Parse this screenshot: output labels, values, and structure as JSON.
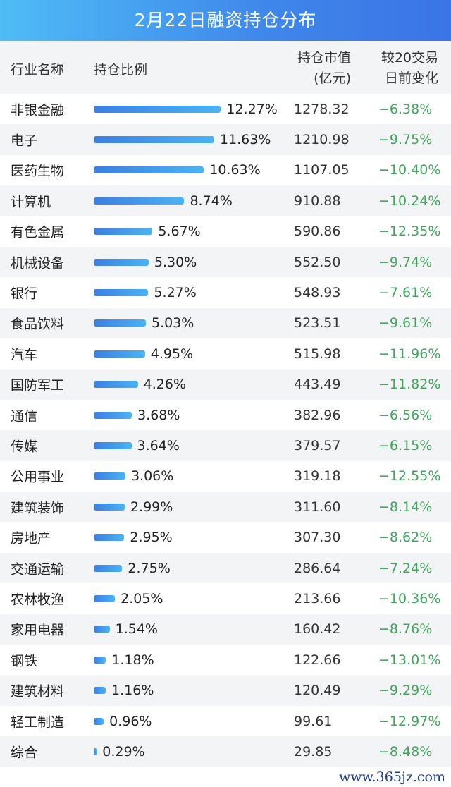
{
  "title": "2月22日融资持仓分布",
  "headers": {
    "name": "行业名称",
    "ratio": "持仓比例",
    "value_l1": "持仓市值",
    "value_l2": "(亿元)",
    "change_l1": "较20交易",
    "change_l2": "日前变化"
  },
  "colors": {
    "bar": "#3b7fe2",
    "change": "#3fa65c"
  },
  "rows": [
    {
      "name": "非银金融",
      "ratio": 12.27,
      "ratio_label": "12.27%",
      "value": "1278.32",
      "change": "−6.38%"
    },
    {
      "name": "电子",
      "ratio": 11.63,
      "ratio_label": "11.63%",
      "value": "1210.98",
      "change": "−9.75%"
    },
    {
      "name": "医药生物",
      "ratio": 10.63,
      "ratio_label": "10.63%",
      "value": "1107.05",
      "change": "−10.40%"
    },
    {
      "name": "计算机",
      "ratio": 8.74,
      "ratio_label": "8.74%",
      "value": "910.88",
      "change": "−10.24%"
    },
    {
      "name": "有色金属",
      "ratio": 5.67,
      "ratio_label": "5.67%",
      "value": "590.86",
      "change": "−12.35%"
    },
    {
      "name": "机械设备",
      "ratio": 5.3,
      "ratio_label": "5.30%",
      "value": "552.50",
      "change": "−9.74%"
    },
    {
      "name": "银行",
      "ratio": 5.27,
      "ratio_label": "5.27%",
      "value": "548.93",
      "change": "−7.61%"
    },
    {
      "name": "食品饮料",
      "ratio": 5.03,
      "ratio_label": "5.03%",
      "value": "523.51",
      "change": "−9.61%"
    },
    {
      "name": "汽车",
      "ratio": 4.95,
      "ratio_label": "4.95%",
      "value": "515.98",
      "change": "−11.96%"
    },
    {
      "name": "国防军工",
      "ratio": 4.26,
      "ratio_label": "4.26%",
      "value": "443.49",
      "change": "−11.82%"
    },
    {
      "name": "通信",
      "ratio": 3.68,
      "ratio_label": "3.68%",
      "value": "382.96",
      "change": "−6.56%"
    },
    {
      "name": "传媒",
      "ratio": 3.64,
      "ratio_label": "3.64%",
      "value": "379.57",
      "change": "−6.15%"
    },
    {
      "name": "公用事业",
      "ratio": 3.06,
      "ratio_label": "3.06%",
      "value": "319.18",
      "change": "−12.55%"
    },
    {
      "name": "建筑装饰",
      "ratio": 2.99,
      "ratio_label": "2.99%",
      "value": "311.60",
      "change": "−8.14%"
    },
    {
      "name": "房地产",
      "ratio": 2.95,
      "ratio_label": "2.95%",
      "value": "307.30",
      "change": "−8.62%"
    },
    {
      "name": "交通运输",
      "ratio": 2.75,
      "ratio_label": "2.75%",
      "value": "286.64",
      "change": "−7.24%"
    },
    {
      "name": "农林牧渔",
      "ratio": 2.05,
      "ratio_label": "2.05%",
      "value": "213.66",
      "change": "−10.36%"
    },
    {
      "name": "家用电器",
      "ratio": 1.54,
      "ratio_label": "1.54%",
      "value": "160.42",
      "change": "−8.76%"
    },
    {
      "name": "钢铁",
      "ratio": 1.18,
      "ratio_label": "1.18%",
      "value": "122.66",
      "change": "−13.01%"
    },
    {
      "name": "建筑材料",
      "ratio": 1.16,
      "ratio_label": "1.16%",
      "value": "120.49",
      "change": "−9.29%"
    },
    {
      "name": "轻工制造",
      "ratio": 0.96,
      "ratio_label": "0.96%",
      "value": "99.61",
      "change": "−12.97%"
    },
    {
      "name": "综合",
      "ratio": 0.29,
      "ratio_label": "0.29%",
      "value": "29.85",
      "change": "−8.48%"
    }
  ],
  "watermark": "www.365jz.com"
}
